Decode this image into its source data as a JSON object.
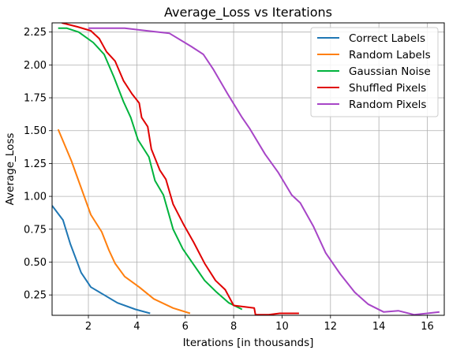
{
  "chart_data": {
    "type": "line",
    "title": "Average_Loss vs Iterations",
    "xlabel": "Iterations [in thousands]",
    "ylabel": "Average_Loss",
    "xlim": [
      0.5,
      16.7
    ],
    "ylim": [
      0.095,
      2.32
    ],
    "xticks": [
      2,
      4,
      6,
      8,
      10,
      12,
      14,
      16
    ],
    "yticks": [
      0.25,
      0.5,
      0.75,
      1.0,
      1.25,
      1.5,
      1.75,
      2.0,
      2.25
    ],
    "ytick_labels": [
      "0.25",
      "0.50",
      "0.75",
      "1.00",
      "1.25",
      "1.50",
      "1.75",
      "2.00",
      "2.25"
    ],
    "xtick_labels": [
      "2",
      "4",
      "6",
      "8",
      "10",
      "12",
      "14",
      "16"
    ],
    "grid": true,
    "legend_position": "top-right",
    "series": [
      {
        "name": "Correct Labels",
        "color": "#1f77b4",
        "x": [
          0.5,
          0.95,
          1.25,
          1.7,
          2.1,
          2.65,
          3.2,
          3.95,
          4.55
        ],
        "y": [
          0.93,
          0.82,
          0.64,
          0.42,
          0.31,
          0.25,
          0.19,
          0.14,
          0.11
        ]
      },
      {
        "name": "Random Labels",
        "color": "#ff7f0e",
        "x": [
          0.75,
          1.3,
          1.75,
          2.1,
          2.55,
          2.85,
          3.1,
          3.5,
          4.1,
          4.7,
          5.5,
          6.2
        ],
        "y": [
          1.51,
          1.27,
          1.04,
          0.86,
          0.73,
          0.59,
          0.49,
          0.39,
          0.31,
          0.22,
          0.15,
          0.11
        ]
      },
      {
        "name": "Gaussian Noise",
        "color": "#00b33c",
        "x": [
          0.75,
          1.1,
          1.6,
          2.2,
          2.65,
          3.05,
          3.45,
          3.75,
          4.05,
          4.5,
          4.75,
          5.1,
          5.5,
          5.9,
          6.35,
          6.8,
          7.3,
          7.8,
          8.35
        ],
        "y": [
          2.28,
          2.28,
          2.25,
          2.17,
          2.08,
          1.91,
          1.72,
          1.6,
          1.43,
          1.3,
          1.12,
          1.01,
          0.75,
          0.6,
          0.48,
          0.36,
          0.27,
          0.19,
          0.14
        ]
      },
      {
        "name": "Shuffled Pixels",
        "color": "#e00000",
        "x": [
          0.9,
          1.55,
          2.1,
          2.45,
          2.75,
          3.1,
          3.45,
          3.8,
          4.1,
          4.2,
          4.45,
          4.6,
          4.95,
          5.2,
          5.5,
          5.95,
          6.35,
          6.8,
          7.25,
          7.65,
          8.0,
          8.85,
          8.9,
          9.45,
          9.9,
          10.7
        ],
        "y": [
          2.32,
          2.29,
          2.26,
          2.2,
          2.1,
          2.03,
          1.88,
          1.78,
          1.71,
          1.6,
          1.53,
          1.36,
          1.2,
          1.13,
          0.94,
          0.78,
          0.65,
          0.49,
          0.36,
          0.29,
          0.17,
          0.15,
          0.1,
          0.1,
          0.11,
          0.11
        ]
      },
      {
        "name": "Random Pixels",
        "color": "#a745c7",
        "x": [
          2.0,
          3.5,
          4.4,
          5.35,
          6.25,
          6.75,
          7.15,
          7.75,
          8.35,
          8.65,
          9.3,
          9.85,
          10.4,
          10.75,
          11.3,
          11.8,
          12.4,
          13.0,
          13.55,
          14.2,
          14.8,
          15.45,
          16.0,
          16.5
        ],
        "y": [
          2.28,
          2.28,
          2.26,
          2.24,
          2.14,
          2.08,
          1.97,
          1.78,
          1.6,
          1.52,
          1.32,
          1.18,
          1.01,
          0.95,
          0.77,
          0.57,
          0.41,
          0.27,
          0.18,
          0.12,
          0.13,
          0.1,
          0.11,
          0.12
        ]
      }
    ]
  }
}
